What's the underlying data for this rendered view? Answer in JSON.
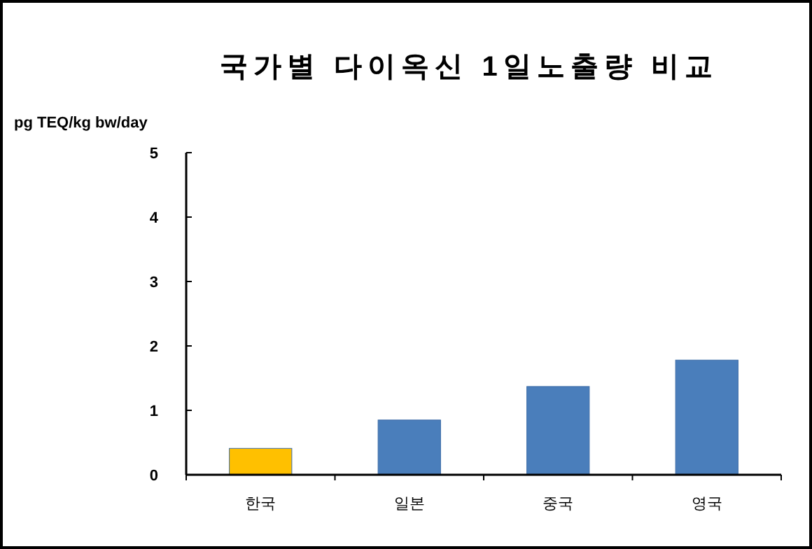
{
  "chart_data": {
    "type": "bar",
    "title": "국가별  다이옥신 1일노출량 비교",
    "ylabel": "pg TEQ/kg bw/day",
    "categories": [
      "한국",
      "일본",
      "중국",
      "영국"
    ],
    "values": [
      0.41,
      0.85,
      1.37,
      1.78
    ],
    "colors": [
      "#ffc000",
      "#4a7ebb",
      "#4a7ebb",
      "#4a7ebb"
    ],
    "ylim": [
      0,
      5
    ],
    "yticks": [
      0,
      1,
      2,
      3,
      4,
      5
    ],
    "grid": false
  }
}
